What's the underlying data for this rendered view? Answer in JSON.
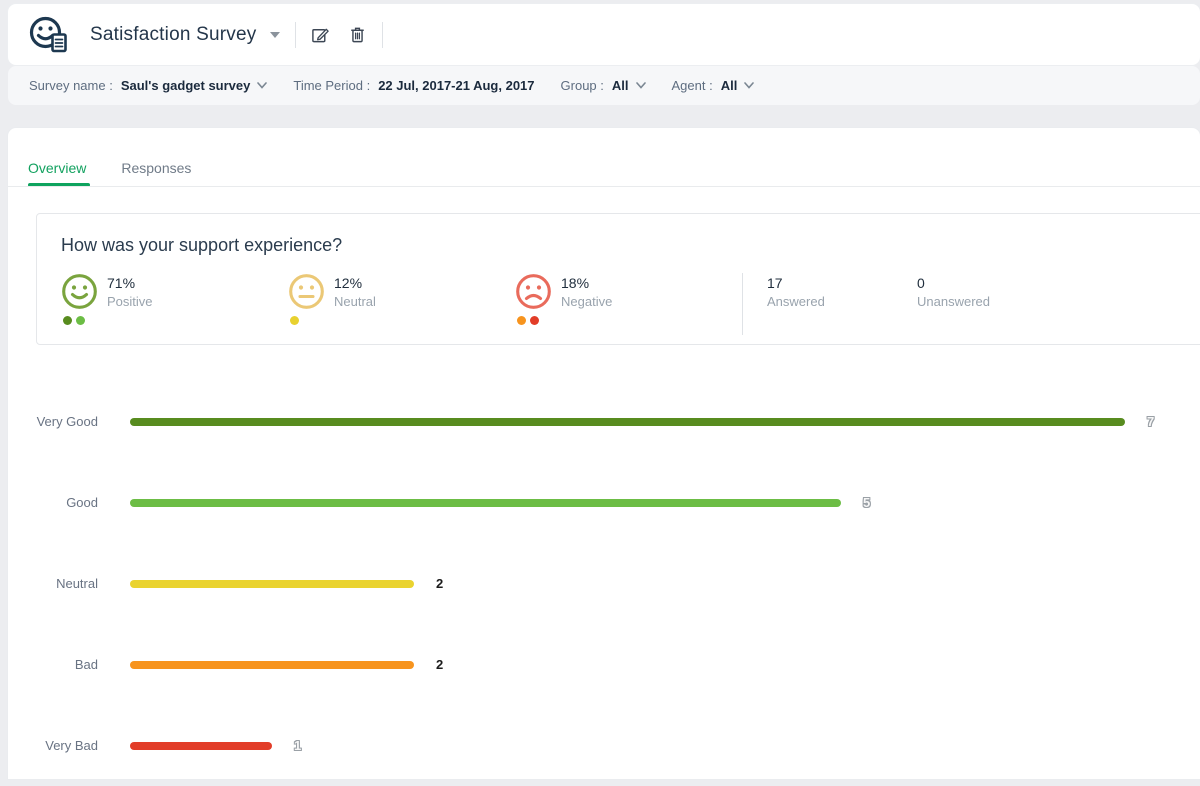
{
  "header": {
    "title": "Satisfaction Survey",
    "icons": [
      "survey-smiley-doc-icon",
      "dropdown-caret-icon",
      "edit-icon",
      "delete-icon"
    ]
  },
  "filters": {
    "survey_name_label": "Survey name :",
    "survey_name_value": "Saul's gadget survey",
    "time_period_label": "Time Period :",
    "time_period_value": "22 Jul, 2017-21 Aug, 2017",
    "group_label": "Group :",
    "group_value": "All",
    "agent_label": "Agent :",
    "agent_value": "All"
  },
  "tabs": [
    {
      "label": "Overview",
      "active": true
    },
    {
      "label": "Responses",
      "active": false
    }
  ],
  "tab_accent_color": "#0ea35e",
  "question_card": {
    "question": "How was your support experience?",
    "stats": [
      {
        "percent": "71%",
        "label": "Positive",
        "smiley": "happy",
        "color": "#7aa43e",
        "dots": [
          "#588c1f",
          "#6cbd45"
        ]
      },
      {
        "percent": "12%",
        "label": "Neutral",
        "smiley": "neutral",
        "color": "#ebc876",
        "dots": [
          "#e8d12f"
        ]
      },
      {
        "percent": "18%",
        "label": "Negative",
        "smiley": "sad",
        "color": "#e96b5c",
        "dots": [
          "#f7941e",
          "#e23d28"
        ]
      }
    ],
    "answered": {
      "value": "17",
      "label": "Answered"
    },
    "unanswered": {
      "value": "0",
      "label": "Unanswered"
    }
  },
  "chart_data": {
    "type": "bar",
    "orientation": "horizontal",
    "categories": [
      "Very Good",
      "Good",
      "Neutral",
      "Bad",
      "Very Bad"
    ],
    "values": [
      7,
      5,
      2,
      2,
      1
    ],
    "colors": [
      "#588c1f",
      "#6cbd45",
      "#ead32f",
      "#f7941e",
      "#e23d28"
    ],
    "value_label_styles": [
      "embossed",
      "embossed",
      "bold",
      "bold",
      "embossed"
    ],
    "xlim": [
      0,
      7
    ],
    "grid": false,
    "legend": false
  }
}
